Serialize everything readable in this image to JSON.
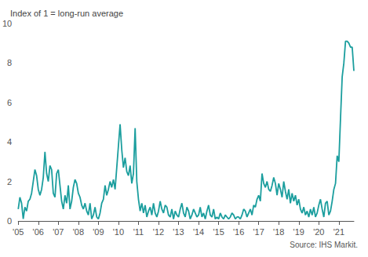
{
  "chart_data": {
    "type": "line",
    "ylabel": "Index of 1 = long-run average",
    "source": "Source: IHS Markit.",
    "color": "#1b9e9e",
    "grid": false,
    "ylim": [
      0,
      10
    ],
    "yticks": [
      0,
      2,
      4,
      6,
      8,
      10
    ],
    "categories": [
      "'05",
      null,
      null,
      null,
      null,
      null,
      null,
      null,
      null,
      null,
      null,
      null,
      "'06",
      null,
      null,
      null,
      null,
      null,
      null,
      null,
      null,
      null,
      null,
      null,
      "'07",
      null,
      null,
      null,
      null,
      null,
      null,
      null,
      null,
      null,
      null,
      null,
      "'08",
      null,
      null,
      null,
      null,
      null,
      null,
      null,
      null,
      null,
      null,
      null,
      "'09",
      null,
      null,
      null,
      null,
      null,
      null,
      null,
      null,
      null,
      null,
      null,
      "'10",
      null,
      null,
      null,
      null,
      null,
      null,
      null,
      null,
      null,
      null,
      null,
      "'11",
      null,
      null,
      null,
      null,
      null,
      null,
      null,
      null,
      null,
      null,
      null,
      "'12",
      null,
      null,
      null,
      null,
      null,
      null,
      null,
      null,
      null,
      null,
      null,
      "'13",
      null,
      null,
      null,
      null,
      null,
      null,
      null,
      null,
      null,
      null,
      null,
      "'14",
      null,
      null,
      null,
      null,
      null,
      null,
      null,
      null,
      null,
      null,
      null,
      "'15",
      null,
      null,
      null,
      null,
      null,
      null,
      null,
      null,
      null,
      null,
      null,
      "'16",
      null,
      null,
      null,
      null,
      null,
      null,
      null,
      null,
      null,
      null,
      null,
      "'17",
      null,
      null,
      null,
      null,
      null,
      null,
      null,
      null,
      null,
      null,
      null,
      "'18",
      null,
      null,
      null,
      null,
      null,
      null,
      null,
      null,
      null,
      null,
      null,
      "'19",
      null,
      null,
      null,
      null,
      null,
      null,
      null,
      null,
      null,
      null,
      null,
      "'20",
      null,
      null,
      null,
      null,
      null,
      null,
      null,
      null,
      null,
      null,
      null,
      "'21",
      null,
      null,
      null,
      null,
      null,
      null,
      null,
      null,
      null
    ],
    "values": [
      0.6,
      1.2,
      0.9,
      0.1,
      0.7,
      0.5,
      1.0,
      1.1,
      1.4,
      2.0,
      2.6,
      2.3,
      1.6,
      1.3,
      1.6,
      2.2,
      3.5,
      2.4,
      2.0,
      2.8,
      2.6,
      1.4,
      1.2,
      2.4,
      2.6,
      1.8,
      1.0,
      0.6,
      1.3,
      0.9,
      1.8,
      0.6,
      1.0,
      1.7,
      2.1,
      1.9,
      1.4,
      1.2,
      0.8,
      0.6,
      0.9,
      0.5,
      0.3,
      0.9,
      0.1,
      0.3,
      0.7,
      0.2,
      0.1,
      0.4,
      0.9,
      1.1,
      1.8,
      1.3,
      1.6,
      2.0,
      1.7,
      2.1,
      1.6,
      2.7,
      3.8,
      4.9,
      3.6,
      2.7,
      3.2,
      2.5,
      2.3,
      2.8,
      1.9,
      2.4,
      4.7,
      2.0,
      1.1,
      0.5,
      0.9,
      0.4,
      0.8,
      0.2,
      0.5,
      0.7,
      0.3,
      0.9,
      0.4,
      0.2,
      0.5,
      1.0,
      0.6,
      0.4,
      0.8,
      0.7,
      0.3,
      0.2,
      0.6,
      0.1,
      0.5,
      0.3,
      0.2,
      0.6,
      0.9,
      0.4,
      0.2,
      0.7,
      0.5,
      0.1,
      0.3,
      0.6,
      0.4,
      0.2,
      0.3,
      0.7,
      0.2,
      0.4,
      0.1,
      0.5,
      0.8,
      0.3,
      0.2,
      0.6,
      0.1,
      0.2,
      0.1,
      0.4,
      0.2,
      0.1,
      0.3,
      0.2,
      0.1,
      0.2,
      0.4,
      0.3,
      0.1,
      0.2,
      0.2,
      0.1,
      0.3,
      0.6,
      0.5,
      0.2,
      0.4,
      0.6,
      0.3,
      0.8,
      0.7,
      1.1,
      1.3,
      1.0,
      2.4,
      1.9,
      1.7,
      2.0,
      1.6,
      1.5,
      1.8,
      2.2,
      1.9,
      1.3,
      1.9,
      1.6,
      1.2,
      2.0,
      1.5,
      1.1,
      1.6,
      0.9,
      1.4,
      1.0,
      1.3,
      0.8,
      1.1,
      0.6,
      0.4,
      0.7,
      0.3,
      0.5,
      0.2,
      0.6,
      0.3,
      0.7,
      0.2,
      0.4,
      0.8,
      1.1,
      0.6,
      0.2,
      0.9,
      1.0,
      0.3,
      0.5,
      1.0,
      1.6,
      1.9,
      3.3,
      3.0,
      5.2,
      7.3,
      8.0,
      9.1,
      9.1,
      9.0,
      8.8,
      8.8,
      7.6
    ]
  }
}
